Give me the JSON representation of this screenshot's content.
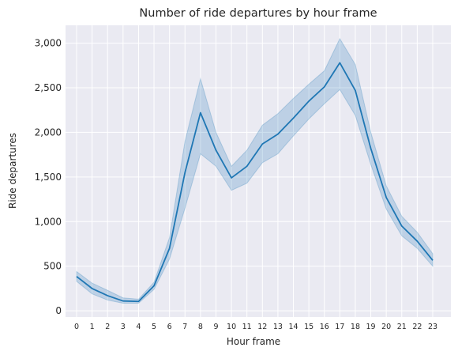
{
  "chart_data": {
    "type": "line",
    "title": "Number of ride departures by hour frame",
    "xlabel": "Hour frame",
    "ylabel": "Ride departures",
    "ylim": [
      -70,
      3200
    ],
    "yticks": [
      0,
      500,
      1000,
      1500,
      2000,
      2500,
      3000
    ],
    "ytick_labels": [
      "0",
      "500",
      "1,000",
      "1,500",
      "2,000",
      "2,500",
      "3,000"
    ],
    "categories": [
      "0",
      "1",
      "2",
      "3",
      "4",
      "5",
      "6",
      "7",
      "8",
      "9",
      "10",
      "11",
      "12",
      "13",
      "14",
      "15",
      "16",
      "17",
      "18",
      "19",
      "20",
      "21",
      "22",
      "23"
    ],
    "values": [
      385,
      250,
      170,
      110,
      105,
      280,
      700,
      1550,
      2220,
      1800,
      1490,
      1620,
      1870,
      1980,
      2160,
      2350,
      2510,
      2780,
      2470,
      1820,
      1270,
      950,
      780,
      565
    ],
    "ci_lower": [
      330,
      190,
      120,
      85,
      85,
      240,
      580,
      1150,
      1760,
      1620,
      1350,
      1430,
      1660,
      1760,
      1960,
      2150,
      2320,
      2480,
      2190,
      1640,
      1140,
      840,
      700,
      500
    ],
    "ci_upper": [
      440,
      310,
      230,
      145,
      130,
      320,
      820,
      1900,
      2600,
      2000,
      1620,
      1800,
      2080,
      2210,
      2380,
      2540,
      2690,
      3050,
      2760,
      2000,
      1400,
      1060,
      880,
      640
    ],
    "grid": true,
    "colors": {
      "line": "#1f77b4",
      "band": "#1f77b4",
      "background": "#eaeaf2",
      "grid": "#ffffff"
    }
  }
}
